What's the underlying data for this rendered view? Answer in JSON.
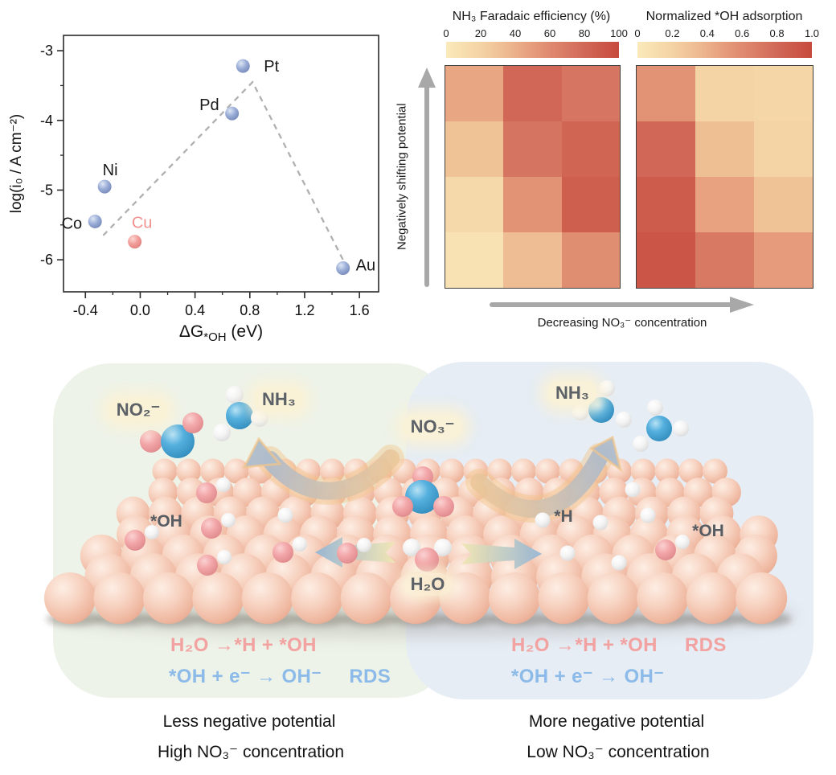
{
  "chart_data": [
    {
      "id": "volcano",
      "type": "scatter",
      "xlabel": {
        "prefix": "ΔG",
        "sub": "*OH",
        "suffix": " (eV)"
      },
      "ylabel": "log(i₀ / A cm⁻²)",
      "xticks": [
        -0.4,
        0.0,
        0.4,
        0.8,
        1.2,
        1.6
      ],
      "yticks": [
        -3,
        -4,
        -5,
        -6
      ],
      "xlim": [
        -0.56,
        1.74
      ],
      "ylim": [
        -6.46,
        -2.78
      ],
      "grid": false,
      "points": [
        {
          "label": "Co",
          "x": -0.33,
          "y": -5.45,
          "series": "other"
        },
        {
          "label": "Ni",
          "x": -0.26,
          "y": -4.95,
          "series": "other"
        },
        {
          "label": "Cu",
          "x": -0.04,
          "y": -5.74,
          "series": "cu"
        },
        {
          "label": "Pd",
          "x": 0.67,
          "y": -3.9,
          "series": "other"
        },
        {
          "label": "Pt",
          "x": 0.75,
          "y": -3.22,
          "series": "other"
        },
        {
          "label": "Au",
          "x": 1.48,
          "y": -6.12,
          "series": "other"
        }
      ],
      "volcano_line": [
        [
          -0.27,
          -5.65
        ],
        [
          0.82,
          -3.45
        ],
        [
          1.48,
          -6.0
        ]
      ],
      "colors": {
        "other": "#8ea4d2",
        "cu": "#f0928f",
        "line": "#b0b0b0"
      }
    },
    {
      "id": "fe-heatmap",
      "type": "heatmap",
      "title": "NH₃ Faradaic efficiency (%)",
      "scale_ticks": [
        "0",
        "20",
        "40",
        "60",
        "80",
        "100"
      ],
      "scale_range": [
        0,
        100
      ],
      "rows": [
        [
          45,
          80,
          72
        ],
        [
          30,
          73,
          82
        ],
        [
          15,
          55,
          86
        ],
        [
          8,
          33,
          58
        ]
      ]
    },
    {
      "id": "oh-heatmap",
      "type": "heatmap",
      "title": "Normalized *OH adsorption",
      "scale_ticks": [
        "0",
        "0.2",
        "0.4",
        "0.6",
        "0.8",
        "1.0"
      ],
      "scale_range": [
        0,
        1
      ],
      "rows": [
        [
          0.55,
          0.2,
          0.17
        ],
        [
          0.8,
          0.32,
          0.2
        ],
        [
          0.88,
          0.47,
          0.3
        ],
        [
          0.92,
          0.7,
          0.5
        ]
      ]
    }
  ],
  "heatmap_axes": {
    "y_arrow_label": "Negatively shifting potential",
    "x_arrow_label": "Decreasing NO₃⁻ concentration"
  },
  "diagram": {
    "labels": {
      "no2": "NO₂⁻",
      "nh3_left": "NH₃",
      "no3": "NO₃⁻",
      "h2o": "H₂O",
      "oh_left": "*OH",
      "h_star": "*H",
      "oh_right": "*OH",
      "nh3_right": "NH₃"
    },
    "equations": {
      "left_line1": "H₂O →*H + *OH",
      "left_line2": "*OH + e⁻ → OH⁻",
      "left_rds": "RDS",
      "right_line1": "H₂O →*H + *OH",
      "right_rds": "RDS",
      "right_line2": "*OH + e⁻ → OH⁻"
    },
    "captions": {
      "left_line1": "Less negative potential",
      "left_line2": "High NO₃⁻ concentration",
      "right_line1": "More negative potential",
      "right_line2": "Low NO₃⁻ concentration"
    },
    "colors": {
      "panel_left": "#edf3e9",
      "panel_right": "#e6edf4",
      "equation_pink": "#f2a3a1",
      "equation_blue": "#8cbae9",
      "label_gray": "#5b6166"
    }
  }
}
